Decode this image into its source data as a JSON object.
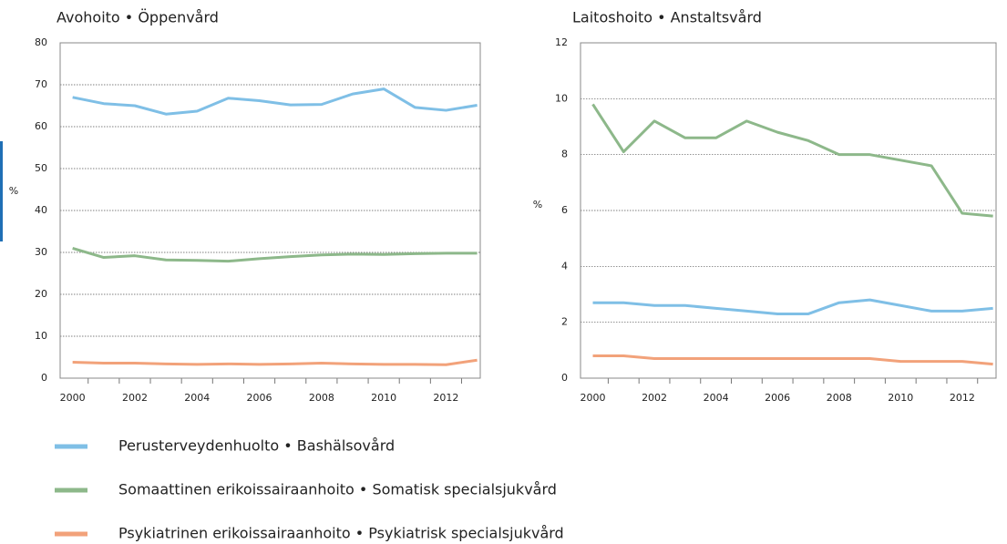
{
  "chart_data": [
    {
      "type": "line",
      "title": "Avohoito • Öppenvård",
      "ylabel": "%",
      "x": [
        2000,
        2001,
        2002,
        2003,
        2004,
        2005,
        2006,
        2007,
        2008,
        2009,
        2010,
        2011,
        2012,
        2013
      ],
      "xlim": [
        1999.6,
        2013.1
      ],
      "xticks": [
        2000,
        2002,
        2004,
        2006,
        2008,
        2010,
        2012
      ],
      "ylim": [
        0,
        80
      ],
      "yticks": [
        0,
        10,
        20,
        30,
        40,
        50,
        60,
        70,
        80
      ],
      "grid": true,
      "series": [
        {
          "name": "Perusterveydenhuolto • Bashälsovård",
          "color": "#7fbfe6",
          "values": [
            67,
            65.5,
            65,
            63,
            63.7,
            66.8,
            66.2,
            65.2,
            65.3,
            67.8,
            69,
            64.6,
            63.9,
            65.1
          ]
        },
        {
          "name": "Somaattinen erikoissairaanhoito • Somatisk specialsjukvård",
          "color": "#8db88a",
          "values": [
            31,
            28.8,
            29.2,
            28.2,
            28.1,
            27.9,
            28.5,
            29,
            29.4,
            29.6,
            29.5,
            29.7,
            29.8,
            29.8
          ]
        },
        {
          "name": "Psykiatrinen erikoissairaanhoito • Psykiatrisk specialsjukvård",
          "color": "#f2a27a",
          "values": [
            3.8,
            3.6,
            3.6,
            3.4,
            3.3,
            3.4,
            3.3,
            3.4,
            3.6,
            3.4,
            3.3,
            3.3,
            3.2,
            4.3
          ]
        }
      ]
    },
    {
      "type": "line",
      "title": "Laitoshoito • Anstaltsvård",
      "ylabel": "%",
      "x": [
        2000,
        2001,
        2002,
        2003,
        2004,
        2005,
        2006,
        2007,
        2008,
        2009,
        2010,
        2011,
        2012,
        2013
      ],
      "xlim": [
        1999.6,
        2013.1
      ],
      "xticks": [
        2000,
        2002,
        2004,
        2006,
        2008,
        2010,
        2012
      ],
      "ylim": [
        0,
        12
      ],
      "yticks": [
        0,
        2,
        4,
        6,
        8,
        10,
        12
      ],
      "grid": true,
      "series": [
        {
          "color": "#7fbfe6",
          "values": [
            2.7,
            2.7,
            2.6,
            2.6,
            2.5,
            2.4,
            2.3,
            2.3,
            2.7,
            2.8,
            2.6,
            2.4,
            2.4,
            2.5
          ]
        },
        {
          "color": "#8db88a",
          "values": [
            9.8,
            8.1,
            9.2,
            8.6,
            8.6,
            9.2,
            8.8,
            8.5,
            8.0,
            8.0,
            7.8,
            7.6,
            5.9,
            5.8
          ]
        },
        {
          "color": "#f2a27a",
          "values": [
            0.8,
            0.8,
            0.7,
            0.7,
            0.7,
            0.7,
            0.7,
            0.7,
            0.7,
            0.7,
            0.6,
            0.6,
            0.6,
            0.5
          ]
        }
      ]
    }
  ]
}
